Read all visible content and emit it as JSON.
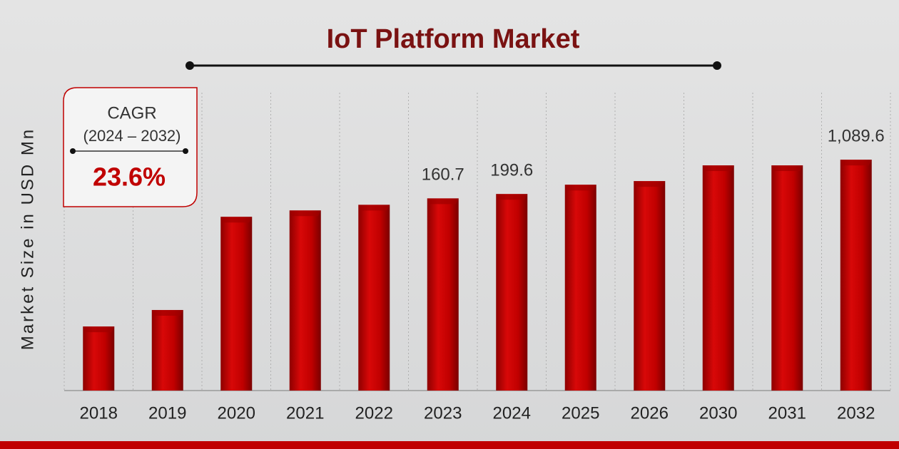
{
  "chart_data": {
    "type": "bar",
    "title": "IoT Platform Market",
    "y_label": "Market Size in USD Mn",
    "categories": [
      "2018",
      "2019",
      "2020",
      "2021",
      "2022",
      "2023",
      "2024",
      "2025",
      "2026",
      "2030",
      "2031",
      "2032"
    ],
    "values": [
      0.285,
      0.645,
      64.6,
      88.5,
      117,
      160.7,
      199.6,
      316,
      378,
      824,
      824,
      1089.6
    ],
    "value_labels": [
      null,
      null,
      null,
      null,
      null,
      "160.7",
      "199.6",
      null,
      null,
      null,
      null,
      "1,089.6"
    ],
    "color": "#c00000",
    "log_scale": true,
    "ylim": [
      0.012,
      30000
    ],
    "annotation": {
      "title": "CAGR",
      "period": "(2024 – 2032)",
      "value": "23.6%"
    }
  }
}
